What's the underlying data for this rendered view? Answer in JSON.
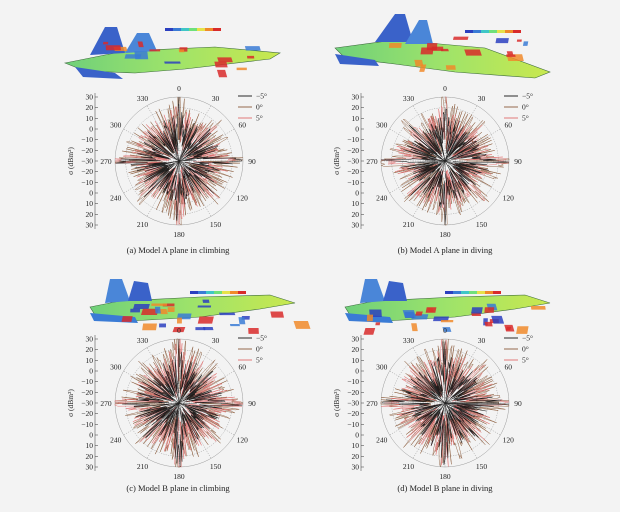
{
  "figure": {
    "panels": [
      {
        "caption": "(a) Model A plane in climbing",
        "model": "A"
      },
      {
        "caption": "(b) Model A plane in diving",
        "model": "A"
      },
      {
        "caption": "(c) Model B plane in climbing",
        "model": "B"
      },
      {
        "caption": "(d) Model B plane in diving",
        "model": "B"
      }
    ],
    "y_axis_label": "σ (dBm²)",
    "y_ticks": [
      "30",
      "20",
      "10",
      "0",
      "−10",
      "−20",
      "−30",
      "−20",
      "−10",
      "0",
      "10",
      "20",
      "30"
    ],
    "angle_labels": [
      "0",
      "30",
      "60",
      "90",
      "120",
      "150",
      "180",
      "210",
      "240",
      "270",
      "300",
      "330"
    ],
    "legend": [
      "−5°",
      "0°",
      "5°"
    ],
    "series_colors": {
      "−5°": "#111111",
      "0°": "#8a5a3a",
      "5°": "#e06a6a"
    },
    "colorbar_colors": [
      "#2b3fbf",
      "#3a7bd5",
      "#3fc6c6",
      "#6fe07a",
      "#e6e24a",
      "#f08a2a",
      "#d82a2a"
    ]
  },
  "chart_data": [
    {
      "type": "scatter",
      "title": "",
      "polar": true,
      "r_range": [
        -30,
        30
      ],
      "angles_deg": [
        0,
        30,
        60,
        90,
        120,
        150,
        180,
        210,
        240,
        270,
        300,
        330
      ],
      "series": [
        {
          "name": "−5°"
        },
        {
          "name": "0°"
        },
        {
          "name": "5°"
        }
      ]
    },
    {
      "type": "scatter",
      "title": "",
      "polar": true,
      "r_range": [
        -30,
        30
      ],
      "angles_deg": [
        0,
        30,
        60,
        90,
        120,
        150,
        180,
        210,
        240,
        270,
        300,
        330
      ],
      "series": [
        {
          "name": "−5°"
        },
        {
          "name": "0°"
        },
        {
          "name": "5°"
        }
      ]
    },
    {
      "type": "scatter",
      "title": "",
      "polar": true,
      "r_range": [
        -30,
        30
      ],
      "angles_deg": [
        0,
        30,
        60,
        90,
        120,
        150,
        180,
        210,
        240,
        270,
        300,
        330
      ],
      "series": [
        {
          "name": "−5°"
        },
        {
          "name": "0°"
        },
        {
          "name": "5°"
        }
      ]
    },
    {
      "type": "scatter",
      "title": "",
      "polar": true,
      "r_range": [
        -30,
        30
      ],
      "angles_deg": [
        0,
        30,
        60,
        90,
        120,
        150,
        180,
        210,
        240,
        270,
        300,
        330
      ],
      "series": [
        {
          "name": "−5°"
        },
        {
          "name": "0°"
        },
        {
          "name": "5°"
        }
      ]
    }
  ]
}
